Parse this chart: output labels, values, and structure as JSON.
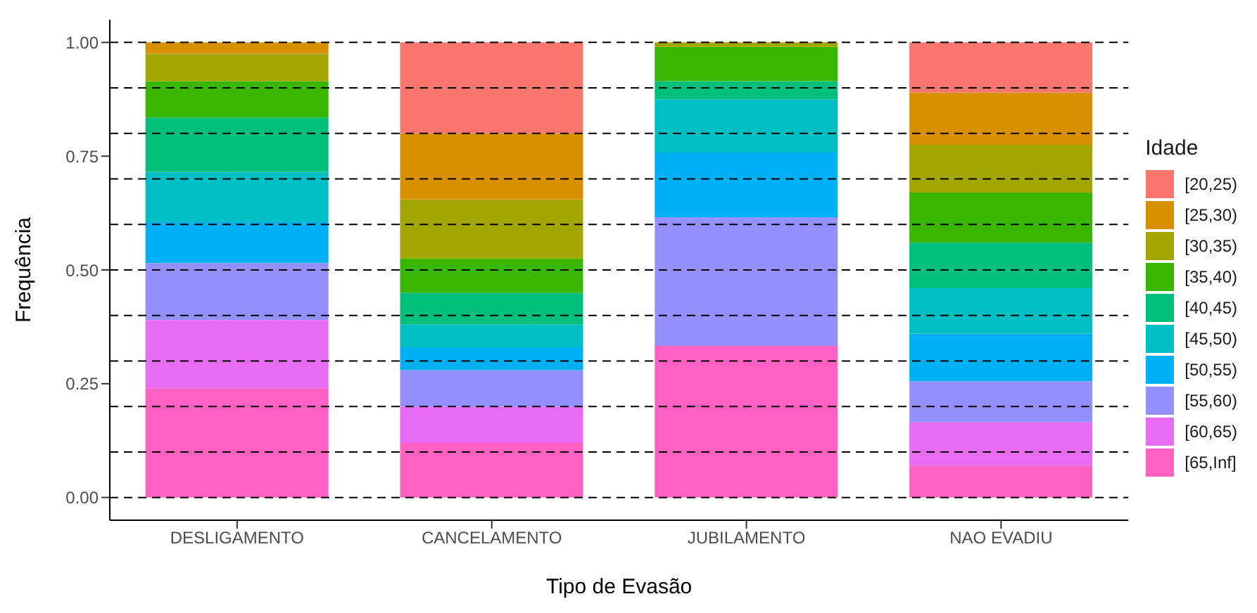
{
  "chart_data": {
    "type": "bar",
    "stacked": true,
    "xlabel": "Tipo de Evasão",
    "ylabel": "Frequência",
    "legend_title": "Idade",
    "legend": "right",
    "categories": [
      "DESLIGAMENTO",
      "CANCELAMENTO",
      "JUBILAMENTO",
      "NAO EVADIU"
    ],
    "ylim": [
      -0.05,
      1.05
    ],
    "yticks": [
      {
        "value": 0,
        "label": "0.00"
      },
      {
        "value": 0.25,
        "label": "0.25"
      },
      {
        "value": 0.5,
        "label": "0.50"
      },
      {
        "value": 0.75,
        "label": "0.75"
      },
      {
        "value": 1,
        "label": "1.00"
      }
    ],
    "grid": false,
    "series": [
      {
        "name": "[65,Inf]",
        "color": "#ff61c3",
        "values": [
          0.24,
          0.12,
          0.333,
          0.07
        ]
      },
      {
        "name": "[60,65)",
        "color": "#e76bf3",
        "values": [
          0.15,
          0.08,
          0,
          0.095
        ]
      },
      {
        "name": "[55,60)",
        "color": "#9590ff",
        "values": [
          0.125,
          0.08,
          0.283,
          0.09
        ]
      },
      {
        "name": "[50,55)",
        "color": "#00b0f6",
        "values": [
          0.09,
          0.05,
          0.142,
          0.105
        ]
      },
      {
        "name": "[45,50)",
        "color": "#00bfc4",
        "values": [
          0.11,
          0.05,
          0.117,
          0.1
        ]
      },
      {
        "name": "[40,45)",
        "color": "#00bf7d",
        "values": [
          0.12,
          0.07,
          0.04,
          0.1
        ]
      },
      {
        "name": "[35,40)",
        "color": "#39b600",
        "values": [
          0.08,
          0.075,
          0.075,
          0.11
        ]
      },
      {
        "name": "[30,35)",
        "color": "#a3a500",
        "values": [
          0.06,
          0.13,
          0.01,
          0.105
        ]
      },
      {
        "name": "[25,30)",
        "color": "#d89000",
        "values": [
          0.025,
          0.145,
          0,
          0.115
        ]
      },
      {
        "name": "[20,25)",
        "color": "#f8766d",
        "values": [
          0,
          0.2,
          0,
          0.11
        ]
      }
    ],
    "ref_lines": [
      {
        "axis": "y",
        "value": 0,
        "color": "#000000",
        "line_style": "dashed"
      },
      {
        "axis": "y",
        "value": 0.1,
        "color": "#000000",
        "line_style": "dashed"
      },
      {
        "axis": "y",
        "value": 0.2,
        "color": "#000000",
        "line_style": "dashed"
      },
      {
        "axis": "y",
        "value": 0.3,
        "color": "#000000",
        "line_style": "dashed"
      },
      {
        "axis": "y",
        "value": 0.4,
        "color": "#000000",
        "line_style": "dashed"
      },
      {
        "axis": "y",
        "value": 0.5,
        "color": "#000000",
        "line_style": "dashed"
      },
      {
        "axis": "y",
        "value": 0.6,
        "color": "#000000",
        "line_style": "dashed"
      },
      {
        "axis": "y",
        "value": 0.7,
        "color": "#000000",
        "line_style": "dashed"
      },
      {
        "axis": "y",
        "value": 0.8,
        "color": "#000000",
        "line_style": "dashed"
      },
      {
        "axis": "y",
        "value": 0.9,
        "color": "#000000",
        "line_style": "dashed"
      },
      {
        "axis": "y",
        "value": 1,
        "color": "#000000",
        "line_style": "dashed"
      }
    ]
  }
}
